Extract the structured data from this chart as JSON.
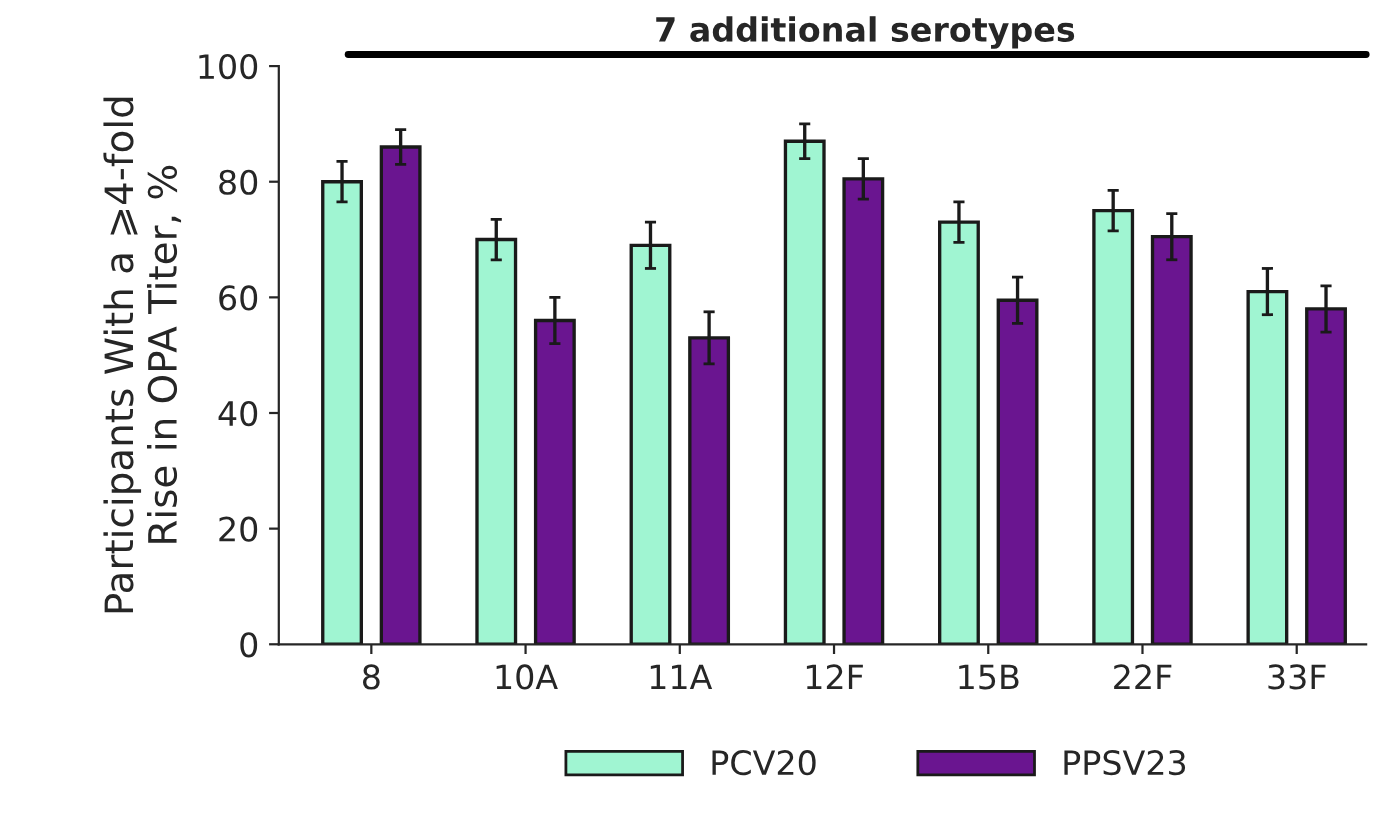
{
  "chart_data": {
    "type": "bar",
    "ylabel": "Participants With a ⩾4-fold\nRise in OPA Titer, %",
    "annotations": [
      "7 additional serotypes"
    ],
    "categories": [
      "8",
      "10A",
      "11A",
      "12F",
      "15B",
      "22F",
      "33F"
    ],
    "series": [
      {
        "name": "PCV20",
        "color": "#a0f5d2",
        "values": [
          80,
          70,
          69,
          87,
          73,
          75,
          61
        ],
        "errors": [
          3.5,
          3.5,
          4,
          3,
          3.5,
          3.5,
          4
        ]
      },
      {
        "name": "PPSV23",
        "color": "#6a1590",
        "values": [
          86,
          56,
          53,
          80.5,
          59.5,
          70.5,
          58
        ],
        "errors": [
          3,
          4,
          4.5,
          3.5,
          4,
          4,
          4
        ]
      }
    ],
    "ylim": [
      0,
      100
    ],
    "yticks": [
      0,
      20,
      40,
      60,
      80,
      100
    ],
    "grid": false,
    "legend": "bottom"
  }
}
